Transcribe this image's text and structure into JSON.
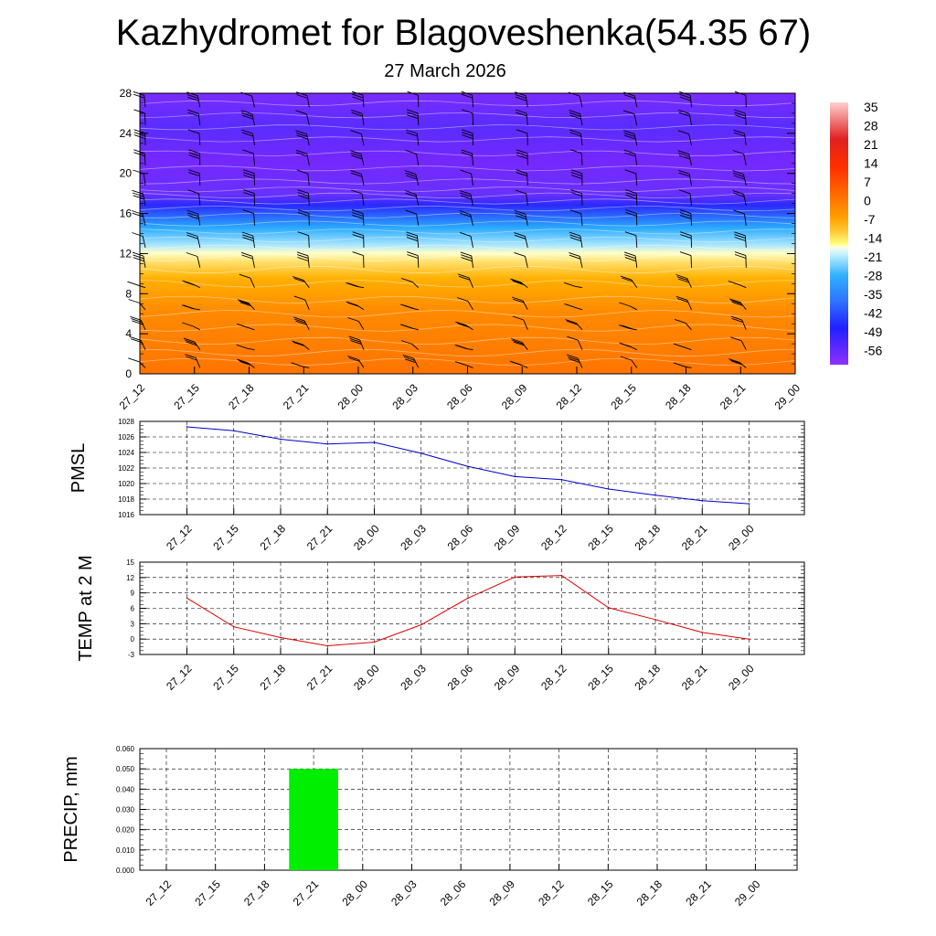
{
  "header": {
    "title": "Kazhydromet for Blagoveshenka(54.35 67)",
    "date": "27 March 2026"
  },
  "chart_data": [
    {
      "type": "heatmap",
      "name": "upper-air temperature and wind section",
      "times": [
        "27_12",
        "27_15",
        "27_18",
        "27_21",
        "28_00",
        "28_03",
        "28_06",
        "28_09",
        "28_12",
        "28_15",
        "28_18",
        "28_21",
        "29_00"
      ],
      "ylim": [
        0,
        28
      ],
      "yticks": [
        0,
        4,
        8,
        12,
        16,
        20,
        24,
        28
      ],
      "colorbar_labels": [
        "35",
        "28",
        "21",
        "14",
        "7",
        "0",
        "-7",
        "-14",
        "-21",
        "-28",
        "-35",
        "-42",
        "-49",
        "-56"
      ],
      "colors": {
        "lowest_level": "#ff7a00",
        "lower_level": "#ff9a00",
        "freezing_level": "#ffffc0",
        "upper_cold": "#1ea6ff",
        "stratosphere": "#7a22ff",
        "barbs": "#000000"
      }
    },
    {
      "type": "line",
      "name": "PMSL",
      "ylabel": "PMSL",
      "categories": [
        "27_12",
        "27_15",
        "27_18",
        "27_21",
        "28_00",
        "28_03",
        "28_06",
        "28_09",
        "28_12",
        "28_15",
        "28_18",
        "28_21",
        "29_00"
      ],
      "values": [
        1027.3,
        1026.8,
        1025.7,
        1025.1,
        1025.3,
        1023.9,
        1022.2,
        1020.9,
        1020.5,
        1019.3,
        1018.5,
        1017.8,
        1017.4
      ],
      "ylim": [
        1016,
        1028
      ],
      "yticks": [
        "1016",
        "1018",
        "1020",
        "1022",
        "1024",
        "1026",
        "1028"
      ],
      "color": "#0000cc"
    },
    {
      "type": "line",
      "name": "TEMP at 2 M",
      "ylabel": "TEMP at 2 M",
      "categories": [
        "27_12",
        "27_15",
        "27_18",
        "27_21",
        "28_00",
        "28_03",
        "28_06",
        "28_09",
        "28_12",
        "28_15",
        "28_18",
        "28_21",
        "29_00"
      ],
      "values": [
        8.0,
        2.4,
        0.3,
        -1.3,
        -0.6,
        2.8,
        8.0,
        12.1,
        12.4,
        6.1,
        3.8,
        1.3,
        0.0
      ],
      "ylim": [
        -3,
        15
      ],
      "yticks": [
        "-3",
        "0",
        "3",
        "6",
        "9",
        "12",
        "15"
      ],
      "color": "#dd0000"
    },
    {
      "type": "bar",
      "name": "PRECIP, mm",
      "ylabel": "PRECIP, mm",
      "categories": [
        "27_12",
        "27_15",
        "27_18",
        "27_21",
        "28_00",
        "28_03",
        "28_06",
        "28_09",
        "28_12",
        "28_15",
        "28_18",
        "28_21",
        "29_00"
      ],
      "values": [
        0,
        0,
        0,
        0.05,
        0,
        0,
        0,
        0,
        0,
        0,
        0,
        0,
        0
      ],
      "ylim": [
        0,
        0.06
      ],
      "yticks": [
        "0.000",
        "0.010",
        "0.020",
        "0.030",
        "0.040",
        "0.050",
        "0.060"
      ],
      "color": "#00ee00"
    }
  ]
}
